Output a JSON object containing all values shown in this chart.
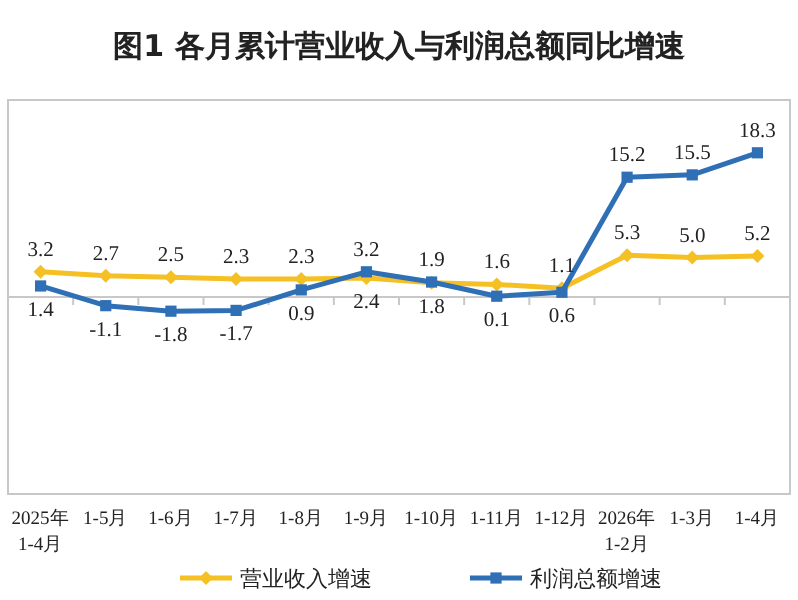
{
  "chart_data": {
    "type": "line",
    "title": "图1  各月累计营业收入与利润总额同比增速",
    "categories": [
      "2025年\n1-4月",
      "1-5月",
      "1-6月",
      "1-7月",
      "1-8月",
      "1-9月",
      "1-10月",
      "1-11月",
      "1-12月",
      "2026年\n1-2月",
      "1-3月",
      "1-4月"
    ],
    "series": [
      {
        "name": "营业收入增速",
        "color": "#f5c023",
        "marker": "diamond",
        "values": [
          3.2,
          2.7,
          2.5,
          2.3,
          2.3,
          2.4,
          1.8,
          1.6,
          1.1,
          5.3,
          5.0,
          5.2
        ],
        "value_labels": [
          "3.2",
          "2.7",
          "2.5",
          "2.3",
          "2.3",
          "2.4",
          "1.8",
          "1.6",
          "1.1",
          "5.3",
          "5.0",
          "5.2"
        ]
      },
      {
        "name": "利润总额增速",
        "color": "#2e6fb5",
        "marker": "square",
        "values": [
          1.4,
          -1.1,
          -1.8,
          -1.7,
          0.9,
          3.2,
          1.9,
          0.1,
          0.6,
          15.2,
          15.5,
          18.3
        ],
        "value_labels": [
          "1.4",
          "-1.1",
          "-1.8",
          "-1.7",
          "0.9",
          "3.2",
          "1.9",
          "0.1",
          "0.6",
          "15.2",
          "15.5",
          "18.3"
        ]
      }
    ],
    "ylim": [
      -25,
      25
    ],
    "legend": "bottom",
    "tick_labels": "x"
  }
}
